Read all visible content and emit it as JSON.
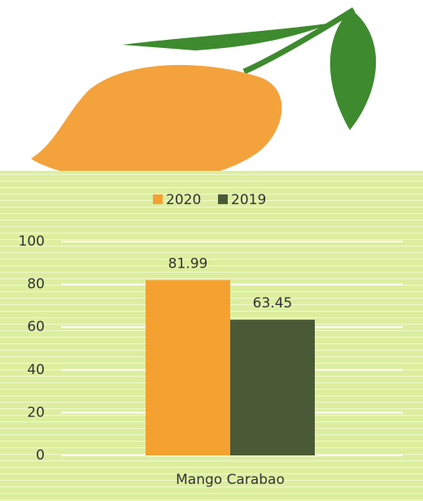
{
  "chart_data": {
    "type": "bar",
    "categories": [
      "Mango Carabao"
    ],
    "series": [
      {
        "name": "2020",
        "color": "#f5a131",
        "values": [
          81.99
        ]
      },
      {
        "name": "2019",
        "color": "#4b5a36",
        "values": [
          63.45
        ]
      }
    ],
    "ylim": [
      0,
      100
    ],
    "yticks": [
      0,
      20,
      40,
      60,
      80,
      100
    ],
    "grid": true,
    "legend": "top"
  }
}
